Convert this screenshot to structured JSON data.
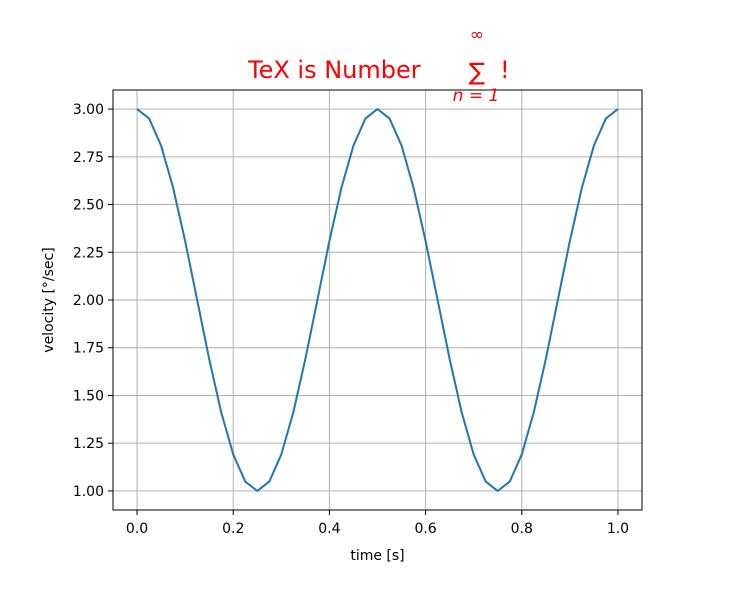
{
  "chart_data": {
    "type": "line",
    "title": {
      "text": "TeX is Number",
      "sum_symbol": "∑",
      "sum_upper": "∞",
      "sum_lower": "n = 1",
      "suffix": "!",
      "color": "#ff0000"
    },
    "xlabel": "time [s]",
    "ylabel": "velocity [°/sec]",
    "xlim": [
      -0.05,
      1.05
    ],
    "ylim": [
      0.9,
      3.1
    ],
    "xticks": [
      0.0,
      0.2,
      0.4,
      0.6,
      0.8,
      1.0
    ],
    "xtick_labels": [
      "0.0",
      "0.2",
      "0.4",
      "0.6",
      "0.8",
      "1.0"
    ],
    "yticks": [
      1.0,
      1.25,
      1.5,
      1.75,
      2.0,
      2.25,
      2.5,
      2.75,
      3.0
    ],
    "ytick_labels": [
      "1.00",
      "1.25",
      "1.50",
      "1.75",
      "2.00",
      "2.25",
      "2.50",
      "2.75",
      "3.00"
    ],
    "grid": true,
    "series": [
      {
        "color": "#1f77b4",
        "x": [
          0.0,
          0.025,
          0.05,
          0.075,
          0.1,
          0.125,
          0.15,
          0.175,
          0.2,
          0.225,
          0.25,
          0.275,
          0.3,
          0.325,
          0.35,
          0.375,
          0.4,
          0.425,
          0.45,
          0.475,
          0.5,
          0.525,
          0.55,
          0.575,
          0.6,
          0.625,
          0.65,
          0.675,
          0.7,
          0.725,
          0.75,
          0.775,
          0.8,
          0.825,
          0.85,
          0.875,
          0.9,
          0.925,
          0.95,
          0.975,
          1.0
        ],
        "y": [
          3.0,
          2.951,
          2.809,
          2.588,
          2.309,
          2.0,
          1.691,
          1.412,
          1.191,
          1.049,
          1.0,
          1.049,
          1.191,
          1.412,
          1.691,
          2.0,
          2.309,
          2.588,
          2.809,
          2.951,
          3.0,
          2.951,
          2.809,
          2.588,
          2.309,
          2.0,
          1.691,
          1.412,
          1.191,
          1.049,
          1.0,
          1.049,
          1.191,
          1.412,
          1.691,
          2.0,
          2.309,
          2.588,
          2.809,
          2.951,
          3.0
        ]
      }
    ]
  }
}
